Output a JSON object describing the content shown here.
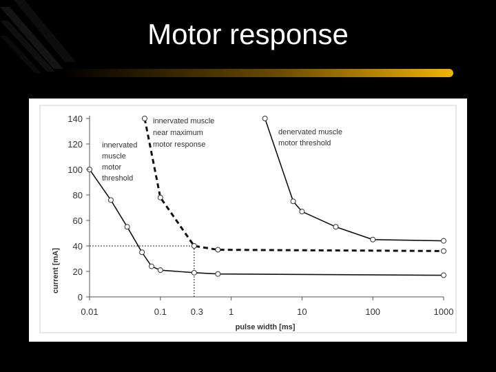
{
  "slide": {
    "title": "Motor response",
    "accent_color": "#f0b400"
  },
  "chart_data": {
    "type": "line",
    "xlabel": "pulse width [ms]",
    "ylabel": "current [mA]",
    "x_scale": "log",
    "xlim": [
      0.01,
      1000
    ],
    "ylim": [
      0,
      140
    ],
    "x_ticks": [
      "0.01",
      "0.1",
      "1",
      "10",
      "100",
      "1000"
    ],
    "y_ticks": [
      "0",
      "20",
      "40",
      "60",
      "80",
      "100",
      "120",
      "140"
    ],
    "grid": false,
    "series": [
      {
        "name": "innervated muscle motor threshold",
        "style": "solid",
        "points": [
          [
            0.01,
            100
          ],
          [
            0.02,
            76
          ],
          [
            0.034,
            55
          ],
          [
            0.055,
            35
          ],
          [
            0.075,
            24
          ],
          [
            0.1,
            21
          ],
          [
            0.3,
            19
          ],
          [
            0.65,
            18
          ],
          [
            1000,
            17
          ]
        ]
      },
      {
        "name": "innervated muscle near maximum motor response",
        "style": "dashed",
        "points": [
          [
            0.06,
            140
          ],
          [
            0.1,
            78
          ],
          [
            0.3,
            40
          ],
          [
            0.65,
            37
          ],
          [
            1000,
            36
          ]
        ]
      },
      {
        "name": "denervated muscle motor threshold",
        "style": "solid",
        "points": [
          [
            3,
            140
          ],
          [
            7.5,
            75
          ],
          [
            10,
            67
          ],
          [
            30,
            55
          ],
          [
            100,
            45
          ],
          [
            1000,
            44
          ]
        ]
      }
    ],
    "annotations": [
      {
        "lines": [
          "innervated",
          "muscle",
          "motor",
          "threshold"
        ]
      },
      {
        "lines": [
          "innervated muscle",
          "near maximum",
          "motor response"
        ]
      },
      {
        "lines": [
          "denervated muscle",
          "motor threshold"
        ]
      },
      {
        "text": "0.3",
        "x": 0.3,
        "y": 40
      }
    ]
  }
}
